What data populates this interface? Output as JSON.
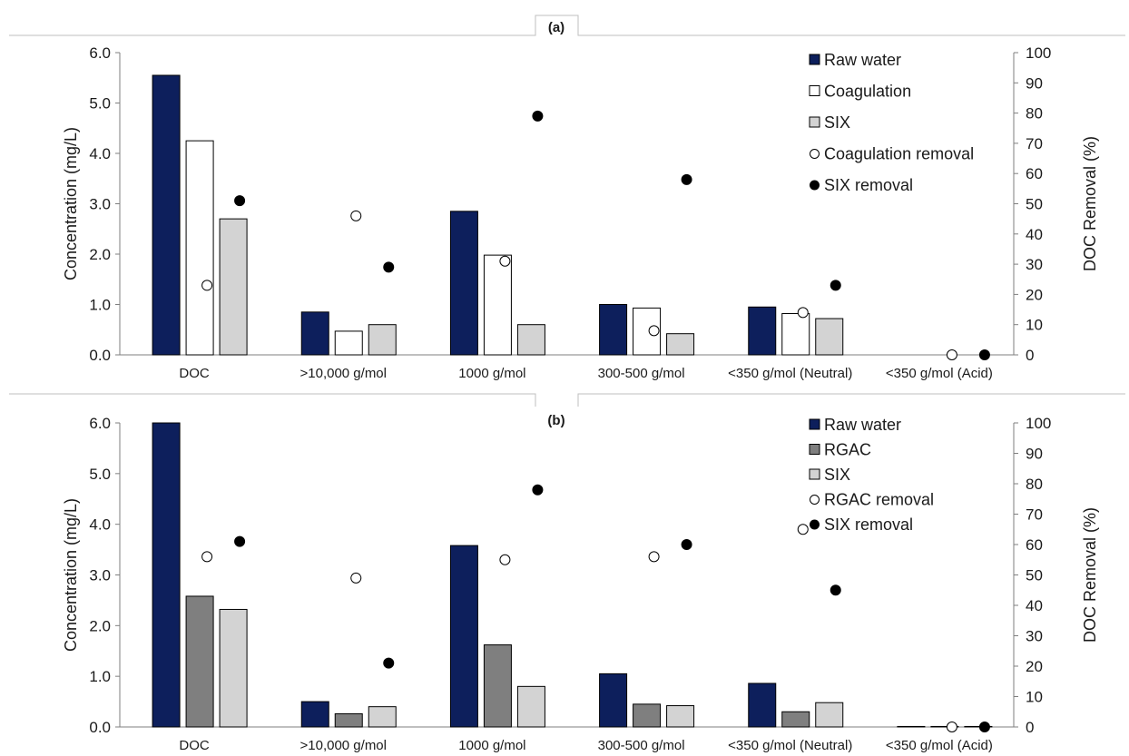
{
  "colors": {
    "raw_water": "#0d1f5c",
    "coagulation": "#ffffff",
    "rgac": "#7f7f7f",
    "six": "#d3d3d3",
    "open_marker": "#ffffff",
    "filled_marker": "#000000",
    "axis": "#7f7f7f",
    "frame": "#bfbfbf"
  },
  "chart_data": [
    {
      "panel": "(a)",
      "type": "bar",
      "categories": [
        "DOC",
        ">10,000 g/mol",
        "1000 g/mol",
        "300-500 g/mol",
        "<350 g/mol (Neutral)",
        "<350 g/mol (Acid)"
      ],
      "ylabel": "Concentration (mg/L)",
      "y2label": "DOC Removal (%)",
      "ylim": [
        0,
        6
      ],
      "y_ticks": [
        "0.0",
        "1.0",
        "2.0",
        "3.0",
        "4.0",
        "5.0",
        "6.0"
      ],
      "y2lim": [
        0,
        100
      ],
      "y2_ticks": [
        "0",
        "10",
        "20",
        "30",
        "40",
        "50",
        "60",
        "70",
        "80",
        "90",
        "100"
      ],
      "legend_position": "top-right",
      "bar_series": [
        {
          "name": "Raw water",
          "color_key": "raw_water",
          "values": [
            5.55,
            0.85,
            2.85,
            1.0,
            0.95,
            null
          ]
        },
        {
          "name": "Coagulation",
          "color_key": "coagulation",
          "values": [
            4.25,
            0.47,
            1.98,
            0.93,
            0.82,
            null
          ]
        },
        {
          "name": "SIX",
          "color_key": "six",
          "values": [
            2.7,
            0.6,
            0.6,
            0.42,
            0.72,
            null
          ]
        }
      ],
      "marker_series": [
        {
          "name": "Coagulation removal",
          "style": "open",
          "values": [
            23,
            46,
            31,
            8,
            14,
            0
          ]
        },
        {
          "name": "SIX removal",
          "style": "filled",
          "values": [
            51,
            29,
            79,
            58,
            23,
            0
          ]
        }
      ]
    },
    {
      "panel": "(b)",
      "type": "bar",
      "categories": [
        "DOC",
        ">10,000 g/mol",
        "1000 g/mol",
        "300-500 g/mol",
        "<350 g/mol (Neutral)",
        "<350 g/mol (Acid)"
      ],
      "ylabel": "Concentration (mg/L)",
      "y2label": "DOC Removal (%)",
      "ylim": [
        0,
        6
      ],
      "y_ticks": [
        "0.0",
        "1.0",
        "2.0",
        "3.0",
        "4.0",
        "5.0",
        "6.0"
      ],
      "y2lim": [
        0,
        100
      ],
      "y2_ticks": [
        "0",
        "10",
        "20",
        "30",
        "40",
        "50",
        "60",
        "70",
        "80",
        "90",
        "100"
      ],
      "legend_position": "top-right",
      "bar_series": [
        {
          "name": "Raw water",
          "color_key": "raw_water",
          "values": [
            6.0,
            0.5,
            3.58,
            1.05,
            0.86,
            0.01
          ]
        },
        {
          "name": "RGAC",
          "color_key": "rgac",
          "values": [
            2.58,
            0.26,
            1.62,
            0.45,
            0.3,
            0.01
          ]
        },
        {
          "name": "SIX",
          "color_key": "six",
          "values": [
            2.32,
            0.4,
            0.8,
            0.42,
            0.48,
            0.01
          ]
        }
      ],
      "marker_series": [
        {
          "name": "RGAC removal",
          "style": "open",
          "values": [
            56,
            49,
            55,
            56,
            65,
            0
          ]
        },
        {
          "name": "SIX removal",
          "style": "filled",
          "values": [
            61,
            21,
            78,
            60,
            45,
            0
          ]
        }
      ]
    }
  ]
}
